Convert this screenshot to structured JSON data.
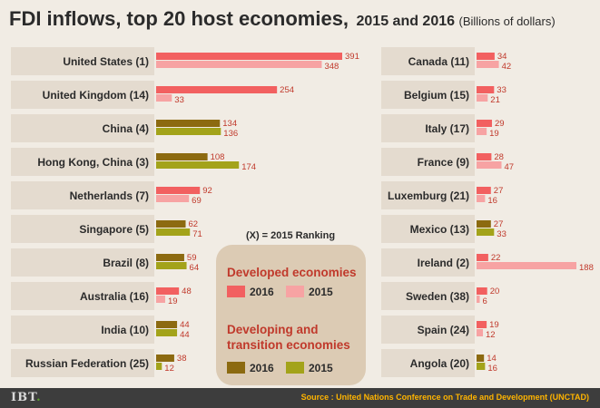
{
  "chart_data": {
    "type": "bar",
    "title": "FDI inflows, top 20 host economies,",
    "title_years": "2015 and 2016",
    "unit": "(Billions of dollars)",
    "ranking_note": "(X) = 2015 Ranking",
    "colors": {
      "developed_2016": "#f26060",
      "developed_2015": "#f7a3a3",
      "developing_2016": "#8c6a10",
      "developing_2015": "#a3a31a",
      "value_text": "#c0392b",
      "legend_box": "#dccbb4",
      "row_band": "#e4dbcf",
      "legend_title": "#c0392b"
    },
    "legend": {
      "developed_title": "Developed economies",
      "developing_title_line1": "Developing and",
      "developing_title_line2": "transition economies",
      "label_2016": "2016",
      "label_2015": "2015"
    },
    "series_names": [
      "2016",
      "2015"
    ],
    "left": [
      {
        "label": "United States (1)",
        "group": "developed",
        "v2016": 391,
        "v2015": 348
      },
      {
        "label": "United Kingdom (14)",
        "group": "developed",
        "v2016": 254,
        "v2015": 33
      },
      {
        "label": "China (4)",
        "group": "developing",
        "v2016": 134,
        "v2015": 136
      },
      {
        "label": "Hong Kong, China (3)",
        "group": "developing",
        "v2016": 108,
        "v2015": 174
      },
      {
        "label": "Netherlands (7)",
        "group": "developed",
        "v2016": 92,
        "v2015": 69
      },
      {
        "label": "Singapore (5)",
        "group": "developing",
        "v2016": 62,
        "v2015": 71
      },
      {
        "label": "Brazil (8)",
        "group": "developing",
        "v2016": 59,
        "v2015": 64
      },
      {
        "label": "Australia (16)",
        "group": "developed",
        "v2016": 48,
        "v2015": 19
      },
      {
        "label": "India (10)",
        "group": "developing",
        "v2016": 44,
        "v2015": 44
      },
      {
        "label": "Russian Federation (25)",
        "group": "developing",
        "v2016": 38,
        "v2015": 12
      }
    ],
    "right": [
      {
        "label": "Canada (11)",
        "group": "developed",
        "v2016": 34,
        "v2015": 42
      },
      {
        "label": "Belgium (15)",
        "group": "developed",
        "v2016": 33,
        "v2015": 21
      },
      {
        "label": "Italy (17)",
        "group": "developed",
        "v2016": 29,
        "v2015": 19
      },
      {
        "label": "France (9)",
        "group": "developed",
        "v2016": 28,
        "v2015": 47
      },
      {
        "label": "Luxemburg (21)",
        "group": "developed",
        "v2016": 27,
        "v2015": 16
      },
      {
        "label": "Mexico (13)",
        "group": "developing",
        "v2016": 27,
        "v2015": 33
      },
      {
        "label": "Ireland (2)",
        "group": "developed",
        "v2016": 22,
        "v2015": 188
      },
      {
        "label": "Sweden (38)",
        "group": "developed",
        "v2016": 20,
        "v2015": 6
      },
      {
        "label": "Spain (24)",
        "group": "developed",
        "v2016": 19,
        "v2015": 12
      },
      {
        "label": "Angola (20)",
        "group": "developing",
        "v2016": 14,
        "v2015": 16
      }
    ]
  },
  "footer": {
    "logo": "IBT",
    "logo_dot": ".",
    "source": "Source : United Nations Conference on Trade and Development (UNCTAD)"
  }
}
